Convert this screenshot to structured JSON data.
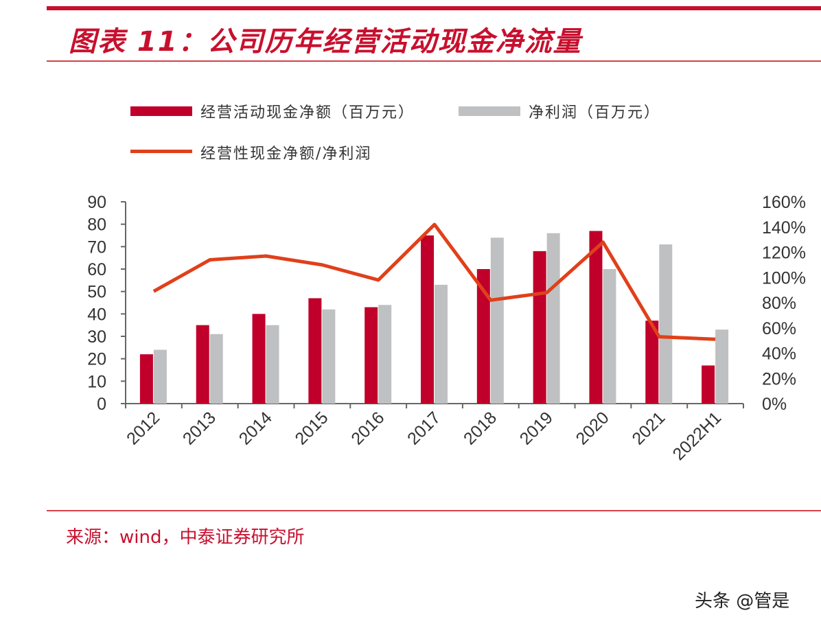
{
  "title": "图表 11：公司历年经营活动现金净流量",
  "source": "来源：wind，中泰证券研究所",
  "watermark": "头条 @管是",
  "colors": {
    "accent": "#c8102e",
    "bar1": "#c0002a",
    "bar2": "#bfc0c2",
    "line": "#e0401a"
  },
  "chart_data": {
    "type": "bar",
    "categories": [
      "2012",
      "2013",
      "2014",
      "2015",
      "2016",
      "2017",
      "2018",
      "2019",
      "2020",
      "2021",
      "2022H1"
    ],
    "series": [
      {
        "name": "经营活动现金净额（百万元）",
        "type": "bar",
        "axis": "left",
        "values": [
          22,
          35,
          40,
          47,
          43,
          75,
          60,
          68,
          77,
          37,
          17
        ]
      },
      {
        "name": "净利润（百万元）",
        "type": "bar",
        "axis": "left",
        "values": [
          24,
          31,
          35,
          42,
          44,
          53,
          74,
          76,
          60,
          71,
          33
        ]
      },
      {
        "name": "经营性现金净额/净利润",
        "type": "line",
        "axis": "right",
        "values": [
          89,
          114,
          117,
          110,
          98,
          142,
          82,
          88,
          128,
          53,
          51
        ]
      }
    ],
    "ylim": [
      0,
      90
    ],
    "yticks": [
      "0",
      "10",
      "20",
      "30",
      "40",
      "50",
      "60",
      "70",
      "80",
      "90"
    ],
    "y2lim": [
      0,
      160
    ],
    "y2ticks": [
      "0%",
      "20%",
      "40%",
      "60%",
      "80%",
      "100%",
      "120%",
      "140%",
      "160%"
    ],
    "legend": "top",
    "grid": false
  }
}
